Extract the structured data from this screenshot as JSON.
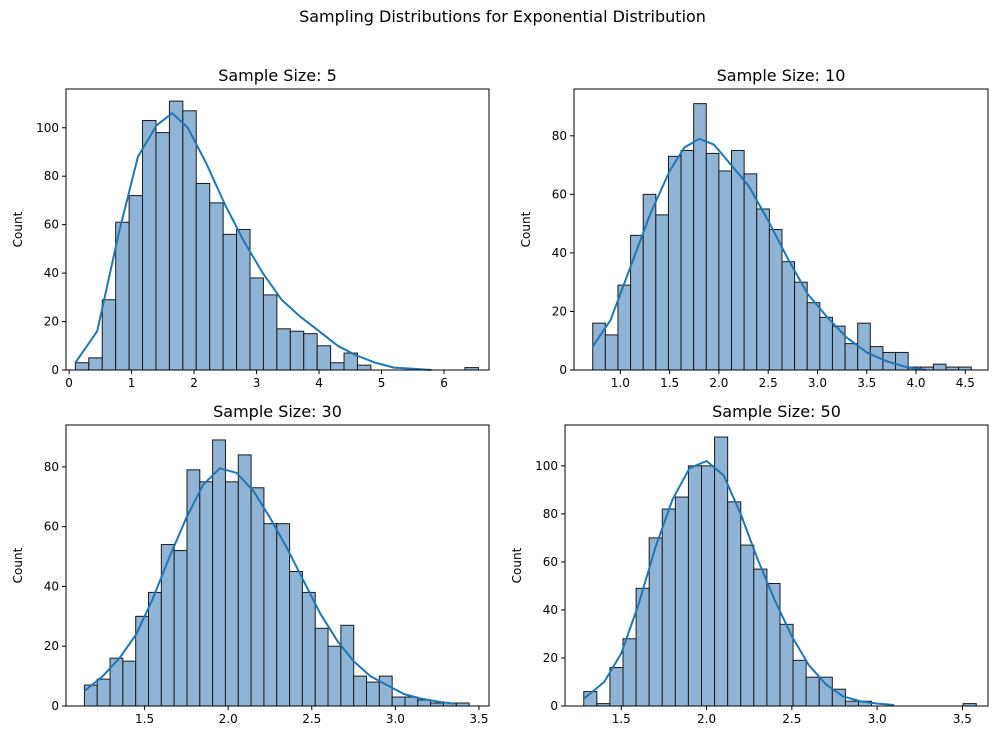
{
  "suptitle": "Sampling Distributions for Exponential Distribution",
  "colors": {
    "bar_fill": "#8fb4d6",
    "bar_edge": "#1a1a1a",
    "kde": "#1f77b4"
  },
  "chart_data": [
    {
      "type": "bar",
      "title": "Sample Size: 5",
      "xlabel": "",
      "ylabel": "Count",
      "xlim": [
        -0.05,
        6.72
      ],
      "ylim": [
        0,
        116
      ],
      "xticks": [
        0,
        1,
        2,
        3,
        4,
        5,
        6
      ],
      "xtick_labels": [
        "0",
        "1",
        "2",
        "3",
        "4",
        "5",
        "6"
      ],
      "yticks": [
        0,
        20,
        40,
        60,
        80,
        100
      ],
      "bin_start": 0.1,
      "bin_width": 0.215,
      "values": [
        3,
        5,
        29,
        61,
        72,
        103,
        98,
        111,
        107,
        77,
        69,
        56,
        58,
        38,
        31,
        17,
        16,
        15,
        10,
        3,
        7,
        2,
        0,
        0,
        0,
        0,
        0,
        0,
        0,
        1
      ],
      "kde": {
        "x": [
          0.1,
          0.45,
          0.8,
          1.1,
          1.4,
          1.65,
          1.9,
          2.2,
          2.5,
          2.8,
          3.1,
          3.4,
          3.7,
          4.0,
          4.3,
          4.6,
          4.9,
          5.2,
          5.5,
          5.8
        ],
        "y": [
          3,
          16,
          57,
          88,
          101,
          106,
          100,
          85,
          68,
          53,
          40,
          29,
          22,
          16,
          10,
          6,
          3,
          1,
          0.5,
          0
        ]
      },
      "grid": false
    },
    {
      "type": "bar",
      "title": "Sample Size: 10",
      "xlabel": "",
      "ylabel": "Count",
      "xlim": [
        0.53,
        4.73
      ],
      "ylim": [
        0,
        96
      ],
      "xticks": [
        1.0,
        1.5,
        2.0,
        2.5,
        3.0,
        3.5,
        4.0,
        4.5
      ],
      "xtick_labels": [
        "1.0",
        "1.5",
        "2.0",
        "2.5",
        "3.0",
        "3.5",
        "4.0",
        "4.5"
      ],
      "yticks": [
        0,
        20,
        40,
        60,
        80
      ],
      "bin_start": 0.72,
      "bin_width": 0.128,
      "values": [
        16,
        12,
        29,
        46,
        60,
        53,
        73,
        75,
        91,
        74,
        68,
        75,
        67,
        55,
        48,
        37,
        30,
        23,
        18,
        15,
        9,
        16,
        8,
        6,
        6,
        1,
        1,
        2,
        1,
        1
      ],
      "kde": {
        "x": [
          0.72,
          0.9,
          1.1,
          1.3,
          1.5,
          1.65,
          1.8,
          1.95,
          2.1,
          2.3,
          2.5,
          2.7,
          2.9,
          3.1,
          3.3,
          3.5,
          3.7,
          3.9,
          4.1
        ],
        "y": [
          8,
          17,
          35,
          53,
          68,
          76,
          79,
          77,
          71,
          63,
          51,
          38,
          26,
          18,
          11,
          6,
          3,
          1,
          0
        ]
      },
      "grid": false
    },
    {
      "type": "bar",
      "title": "Sample Size: 30",
      "xlabel": "",
      "ylabel": "Count",
      "xlim": [
        1.03,
        3.56
      ],
      "ylim": [
        0,
        94
      ],
      "xticks": [
        1.5,
        2.0,
        2.5,
        3.0,
        3.5
      ],
      "xtick_labels": [
        "1.5",
        "2.0",
        "2.5",
        "3.0",
        "3.5"
      ],
      "yticks": [
        0,
        20,
        40,
        60,
        80
      ],
      "bin_start": 1.14,
      "bin_width": 0.0767,
      "values": [
        7,
        9,
        16,
        15,
        30,
        38,
        54,
        52,
        79,
        75,
        89,
        75,
        84,
        73,
        61,
        61,
        45,
        38,
        26,
        20,
        27,
        10,
        8,
        10,
        3,
        3,
        2,
        1,
        1,
        1
      ],
      "kde": {
        "x": [
          1.14,
          1.25,
          1.35,
          1.45,
          1.55,
          1.65,
          1.75,
          1.85,
          1.95,
          2.05,
          2.15,
          2.25,
          2.35,
          2.45,
          2.55,
          2.65,
          2.75,
          2.85,
          2.95,
          3.05,
          3.15,
          3.25,
          3.35
        ],
        "y": [
          5,
          10,
          16,
          24,
          36,
          50,
          63,
          74,
          79.5,
          78,
          72,
          63,
          53,
          42,
          31,
          22,
          15,
          10,
          7,
          4,
          2.5,
          1.5,
          0.8
        ]
      },
      "grid": false
    },
    {
      "type": "bar",
      "title": "Sample Size: 50",
      "xlabel": "",
      "ylabel": "Count",
      "xlim": [
        1.17,
        3.65
      ],
      "ylim": [
        0,
        117
      ],
      "xticks": [
        1.5,
        2.0,
        2.5,
        3.0,
        3.5
      ],
      "xtick_labels": [
        "1.5",
        "2.0",
        "2.5",
        "3.0",
        "3.5"
      ],
      "yticks": [
        0,
        20,
        40,
        60,
        80,
        100
      ],
      "bin_start": 1.28,
      "bin_width": 0.0767,
      "values": [
        6,
        1,
        16,
        28,
        49,
        70,
        82,
        87,
        100,
        100,
        112,
        85,
        67,
        57,
        51,
        34,
        19,
        12,
        12,
        7,
        2,
        2,
        0,
        0,
        0,
        0,
        0,
        0,
        0,
        1
      ],
      "kde": {
        "x": [
          1.28,
          1.4,
          1.5,
          1.6,
          1.7,
          1.8,
          1.9,
          2.0,
          2.1,
          2.2,
          2.3,
          2.4,
          2.5,
          2.6,
          2.7,
          2.8,
          2.9,
          3.0,
          3.1
        ],
        "y": [
          3,
          10,
          22,
          42,
          66,
          86,
          99,
          102,
          96,
          80,
          61,
          44,
          29,
          17,
          9,
          4,
          2,
          1,
          0.4
        ]
      },
      "grid": false
    }
  ]
}
